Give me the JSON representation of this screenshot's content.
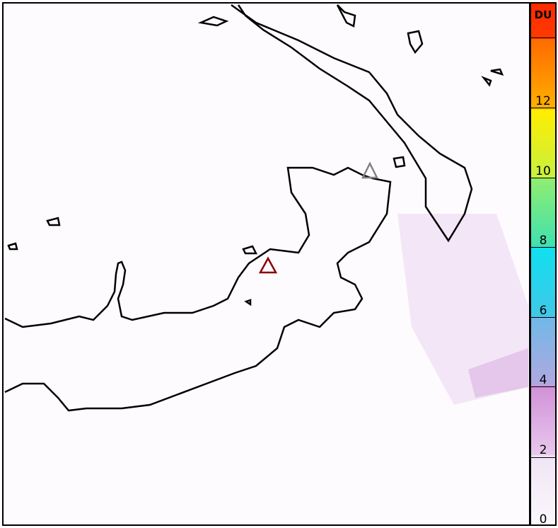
{
  "colorbar": {
    "unit": "DU",
    "range": [
      0,
      14
    ],
    "ticks": [
      "0",
      "2",
      "4",
      "6",
      "8",
      "10",
      "12"
    ],
    "colors": [
      "#fbf8fd",
      "#e8c8ec",
      "#d090d8",
      "#70b8e8",
      "#10e0f0",
      "#90ee70",
      "#ffee00",
      "#ff6a00",
      "#ff2a00"
    ]
  },
  "markers": [
    {
      "name": "volcano-active",
      "color": "#8b0000"
    },
    {
      "name": "volcano-secondary",
      "color": "#808080"
    }
  ],
  "plume_color": "#d8a8e0"
}
